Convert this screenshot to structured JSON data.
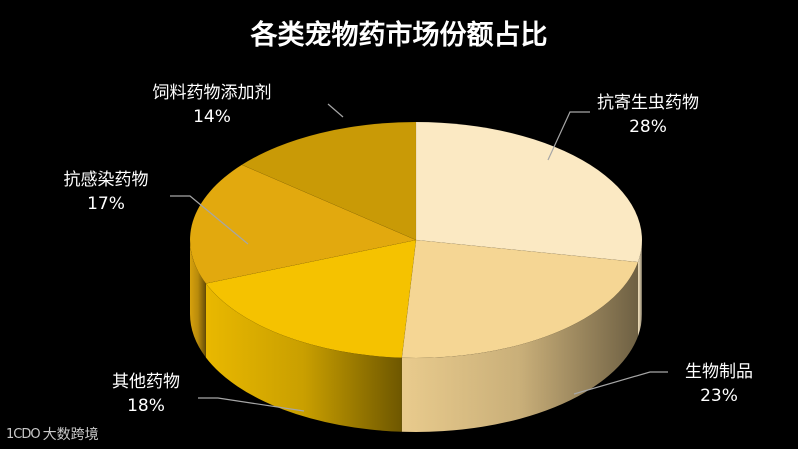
{
  "chart_data": {
    "type": "pie",
    "title": "各类宠物药市场份额占比",
    "categories": [
      "抗寄生虫药物",
      "生物制品",
      "其他药物",
      "抗感染药物",
      "饲料药物添加剂"
    ],
    "values": [
      28,
      23,
      18,
      17,
      14
    ],
    "value_labels": [
      "28%",
      "23%",
      "18%",
      "17%",
      "14%"
    ],
    "colors": [
      "#fbe9c3",
      "#f5d694",
      "#f5c200",
      "#e2a90e",
      "#c99a06"
    ],
    "grid": false,
    "legend": "none"
  },
  "watermark": {
    "logo": "1CDO",
    "text": "大数跨境"
  }
}
